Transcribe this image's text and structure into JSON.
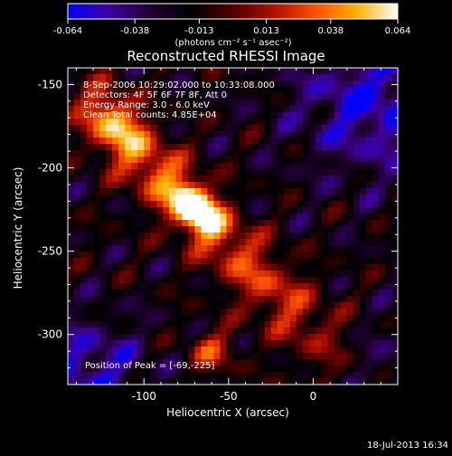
{
  "chart_data": {
    "type": "heatmap",
    "title": "Reconstructed RHESSI Image",
    "xlabel": "Heliocentric X (arcsec)",
    "ylabel": "Heliocentric Y (arcsec)",
    "xlim": [
      -145,
      50
    ],
    "ylim": [
      -330,
      -140
    ],
    "xticks": [
      -100,
      -50,
      0
    ],
    "xtick_labels": [
      "-100",
      "-50",
      "0"
    ],
    "yticks": [
      -150,
      -200,
      -250,
      -300
    ],
    "ytick_labels": [
      "-150",
      "-200",
      "-250",
      "-300"
    ],
    "colorbar": {
      "range": [
        -0.064,
        0.064
      ],
      "ticks": [
        -0.064,
        -0.038,
        -0.013,
        0.013,
        0.038,
        0.064
      ],
      "tick_labels": [
        "-0.064",
        "-0.038",
        "-0.013",
        "0.013",
        "0.038",
        "0.064"
      ],
      "units": "(photons cm⁻² s⁻¹ asec⁻²)",
      "palette": [
        "#0000ff",
        "#4000a0",
        "#200030",
        "#000000",
        "#500000",
        "#b01000",
        "#ff5000",
        "#ffb000",
        "#ffffff"
      ]
    },
    "peak": {
      "x": -69,
      "y": -225
    },
    "annotations": {
      "time": "8-Sep-2006 10:29:02.000 to 10:33:08.000",
      "detectors": "Detectors: 4F 5F 6F 7F 8F, Att 0",
      "energy": "Energy Range: 3.0 - 6.0 keV",
      "clean": "Clean    Total counts: 4.85E+04",
      "peak_label": "Position of Peak = [-69,-225]"
    }
  },
  "footer_date": "18-Jul-2013 16:34"
}
